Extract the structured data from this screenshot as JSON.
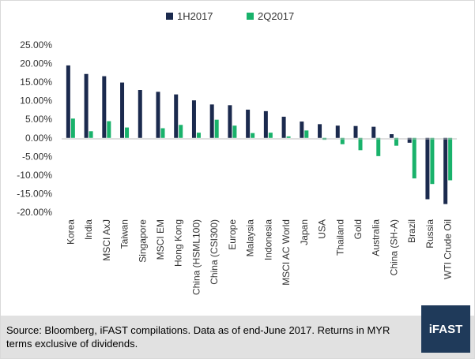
{
  "chart_data": {
    "type": "bar",
    "categories": [
      "Korea",
      "India",
      "MSCI AxJ",
      "Taiwan",
      "Singapore",
      "MSCI EM",
      "Hong Kong",
      "China (HSML100)",
      "China (CSI300)",
      "Europe",
      "Malaysia",
      "Indonesia",
      "MSCI AC World",
      "Japan",
      "USA",
      "Thailand",
      "Gold",
      "Australia",
      "China (SH-A)",
      "Brazil",
      "Russia",
      "WTI Crude Oil"
    ],
    "series": [
      {
        "name": "1H2017",
        "color": "#1b2a4e",
        "values": [
          19.5,
          17.2,
          16.6,
          14.9,
          12.9,
          12.4,
          11.7,
          10.1,
          9.0,
          8.8,
          7.6,
          7.2,
          5.7,
          4.4,
          3.7,
          3.3,
          3.2,
          3.0,
          1.0,
          -1.3,
          -16.5,
          -17.8
        ]
      },
      {
        "name": "2Q2017",
        "color": "#19b26b",
        "values": [
          5.2,
          1.8,
          4.5,
          2.8,
          0.0,
          2.6,
          3.5,
          1.4,
          4.9,
          3.3,
          1.3,
          1.4,
          0.4,
          2.0,
          -0.5,
          -1.7,
          -3.3,
          -4.9,
          -2.1,
          -10.9,
          -12.4,
          -11.4
        ]
      }
    ],
    "yticks": [
      "25.00%",
      "20.00%",
      "15.00%",
      "10.00%",
      "5.00%",
      "0.00%",
      "-5.00%",
      "-10.00%",
      "-15.00%",
      "-20.00%"
    ],
    "ylim": [
      -20,
      25
    ],
    "legend_position": "top-center",
    "grid": false
  },
  "footer": {
    "source": "Source: Bloomberg, iFAST compilations. Data as of end-June 2017. Returns in MYR terms exclusive of dividends.",
    "logo": "iFAST"
  }
}
